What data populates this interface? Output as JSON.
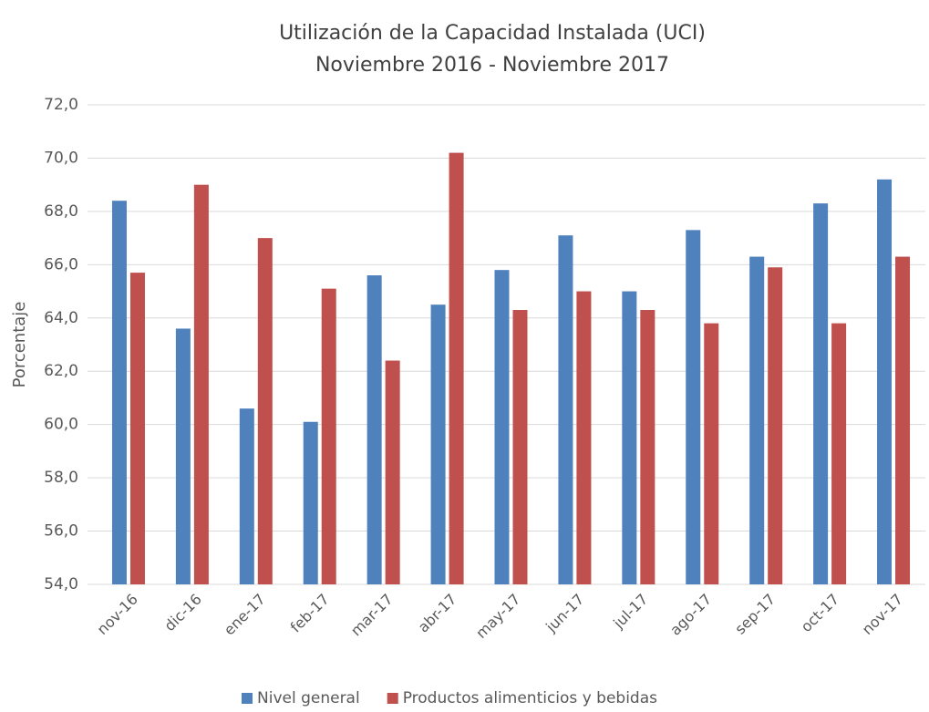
{
  "chart_data": {
    "type": "bar",
    "title": "Utilización de la Capacidad Instalada (UCI)",
    "subtitle": "Noviembre 2016 - Noviembre 2017",
    "y_label": "Porcentaje",
    "categories": [
      "nov-16",
      "dic-16",
      "ene-17",
      "feb-17",
      "mar-17",
      "abr-17",
      "may-17",
      "jun-17",
      "jul-17",
      "ago-17",
      "sep-17",
      "oct-17",
      "nov-17"
    ],
    "series": [
      {
        "name": "Nivel general",
        "color": "#4f81bd",
        "values": [
          68.4,
          63.6,
          60.6,
          60.1,
          65.6,
          64.5,
          65.8,
          67.1,
          65.0,
          67.3,
          66.3,
          68.3,
          69.2
        ]
      },
      {
        "name": "Productos alimenticios y bebidas",
        "color": "#c0504d",
        "values": [
          65.7,
          69.0,
          67.0,
          65.1,
          62.4,
          70.2,
          64.3,
          65.0,
          64.3,
          63.8,
          65.9,
          63.8,
          66.3
        ]
      }
    ],
    "ylim": [
      54,
      72
    ],
    "yticks": [
      {
        "value": 54,
        "label": "54,0"
      },
      {
        "value": 56,
        "label": "56,0"
      },
      {
        "value": 58,
        "label": "58,0"
      },
      {
        "value": 60,
        "label": "60,0"
      },
      {
        "value": 62,
        "label": "62,0"
      },
      {
        "value": 64,
        "label": "64,0"
      },
      {
        "value": 66,
        "label": "66,0"
      },
      {
        "value": 68,
        "label": "68,0"
      },
      {
        "value": 70,
        "label": "70,0"
      },
      {
        "value": 72,
        "label": "72,0"
      }
    ],
    "grid": true,
    "legend": "bottom"
  }
}
